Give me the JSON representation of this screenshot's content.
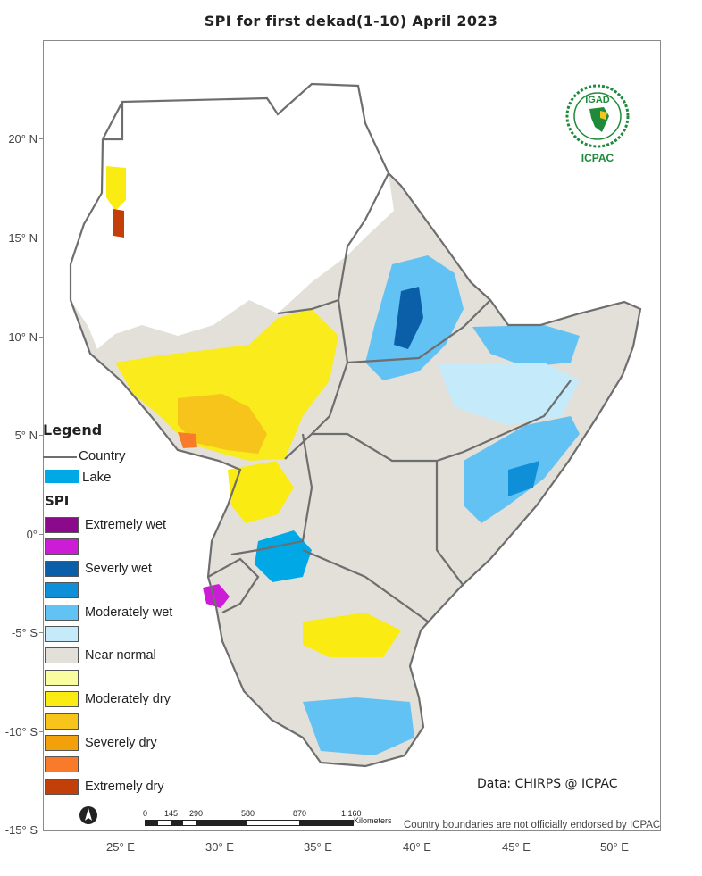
{
  "title": "SPI   for  first dekad(1-10) April 2023",
  "lat_labels": [
    "20° N",
    "15° N",
    "10° N",
    "5° N",
    "0°",
    "-5° S",
    "-10° S",
    "-15° S"
  ],
  "lon_labels": [
    "25° E",
    "30° E",
    "35° E",
    "40° E",
    "45° E",
    "50° E"
  ],
  "legend": {
    "title": "Legend",
    "country_label": "Country",
    "lake_label": "Lake",
    "lake_color": "#00a9e6",
    "spi_title": "SPI",
    "classes": [
      {
        "label": "Extremely wet",
        "color": "#8b0a8c"
      },
      {
        "label": "",
        "color": "#cc1cd6"
      },
      {
        "label": "Severly wet",
        "color": "#0b5ea8"
      },
      {
        "label": "",
        "color": "#0f8fd8"
      },
      {
        "label": "Moderately wet",
        "color": "#62c2f3"
      },
      {
        "label": "",
        "color": "#c5ebfb"
      },
      {
        "label": "Near normal",
        "color": "#e3e0da"
      },
      {
        "label": "",
        "color": "#fafca0"
      },
      {
        "label": "Moderately dry",
        "color": "#faeb12"
      },
      {
        "label": "",
        "color": "#f6c41a"
      },
      {
        "label": "Severely dry",
        "color": "#f2a10b"
      },
      {
        "label": "",
        "color": "#f97a2a"
      },
      {
        "label": "Extremely dry",
        "color": "#c23f0a"
      }
    ]
  },
  "logo": {
    "text_top": "IGAD",
    "text_bottom": "ICPAC",
    "color": "#1f8a3a"
  },
  "credit": "Data: CHIRPS @ ICPAC",
  "disclaimer": "Country boundaries are not officially endorsed by ICPAC",
  "scalebar": {
    "ticks": [
      "0",
      "145",
      "290",
      "580",
      "870",
      "1,160"
    ],
    "unit": "Kilometers"
  },
  "north_arrow": "north-arrow-icon"
}
